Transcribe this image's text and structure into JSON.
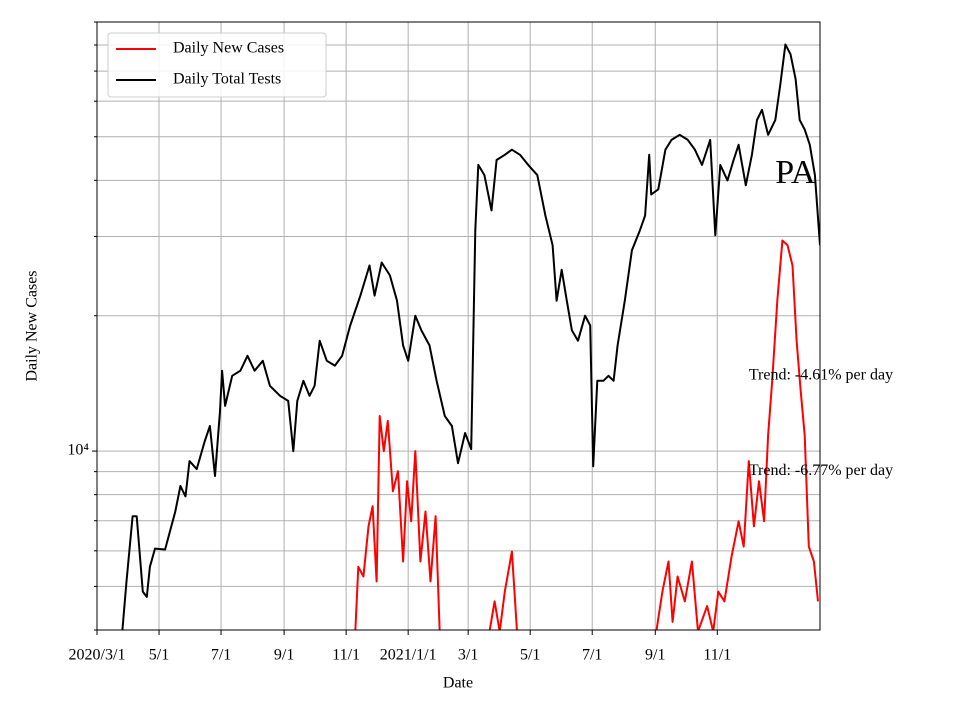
{
  "chart_data": {
    "type": "line",
    "xlabel": "Date",
    "ylabel": "Daily New Cases",
    "log_y": true,
    "grid": true,
    "legend": "upper left",
    "xlim": [
      "2020-03-01",
      "2022-02-10"
    ],
    "xticks": [
      {
        "value": "2020-03-01",
        "label": "2020/3/1"
      },
      {
        "value": "2020-05-01",
        "label": "5/1"
      },
      {
        "value": "2020-07-01",
        "label": "7/1"
      },
      {
        "value": "2020-09-01",
        "label": "9/1"
      },
      {
        "value": "2020-11-01",
        "label": "11/1"
      },
      {
        "value": "2021-01-01",
        "label": "2021/1/1"
      },
      {
        "value": "2021-03-01",
        "label": "3/1"
      },
      {
        "value": "2021-05-01",
        "label": "5/1"
      },
      {
        "value": "2021-07-01",
        "label": "7/1"
      },
      {
        "value": "2021-09-01",
        "label": "9/1"
      },
      {
        "value": "2021-11-01",
        "label": "11/1"
      }
    ],
    "ylim": [
      4000,
      90000
    ],
    "yticks": [
      {
        "value": 10000,
        "label": "10⁴"
      }
    ],
    "yminorticks": [
      4000,
      5000,
      6000,
      7000,
      8000,
      9000,
      20000,
      30000,
      40000,
      50000,
      60000,
      70000,
      80000,
      90000
    ],
    "annotations": [
      {
        "text": "Trend: -4.61% per day",
        "x": "2021-12-02",
        "y": 14700
      },
      {
        "text": "Trend: -6.77% per day",
        "x": "2021-12-02",
        "y": 9020
      },
      {
        "text": "PA",
        "x": "2021-12-28",
        "y": 41100
      }
    ],
    "series": [
      {
        "name": "Daily New Cases",
        "color": "#ff0000",
        "x": [
          "2020-11-10",
          "2020-11-13",
          "2020-11-18",
          "2020-11-23",
          "2020-11-27",
          "2020-12-01",
          "2020-12-04",
          "2020-12-08",
          "2020-12-12",
          "2020-12-17",
          "2020-12-22",
          "2020-12-27",
          "2020-12-31",
          "2021-01-04",
          "2021-01-08",
          "2021-01-13",
          "2021-01-18",
          "2021-01-23",
          "2021-01-28",
          "2021-02-01",
          "2021-02-20",
          "2021-03-22",
          "2021-03-27",
          "2021-04-01",
          "2021-04-06",
          "2021-04-13",
          "2021-04-18",
          "2021-08-01",
          "2021-09-02",
          "2021-09-08",
          "2021-09-14",
          "2021-09-18",
          "2021-09-23",
          "2021-09-30",
          "2021-10-07",
          "2021-10-13",
          "2021-10-22",
          "2021-10-28",
          "2021-11-02",
          "2021-11-08",
          "2021-11-15",
          "2021-11-22",
          "2021-11-27",
          "2021-12-02",
          "2021-12-07",
          "2021-12-12",
          "2021-12-17",
          "2021-12-21",
          "2021-12-25",
          "2021-12-30",
          "2022-01-04",
          "2022-01-09",
          "2022-01-14",
          "2022-01-18",
          "2022-01-22",
          "2022-01-26",
          "2022-01-30",
          "2022-02-04",
          "2022-02-08"
        ],
        "values": [
          3970,
          5530,
          5260,
          6800,
          7540,
          5130,
          11970,
          10000,
          11670,
          8140,
          9020,
          5680,
          8570,
          6980,
          10000,
          5680,
          7340,
          5130,
          7160,
          3970,
          null,
          3970,
          4630,
          3970,
          4870,
          5980,
          3970,
          null,
          3970,
          4870,
          5680,
          4170,
          5260,
          4630,
          5680,
          3970,
          4520,
          3970,
          4870,
          4630,
          5820,
          6980,
          6130,
          9500,
          6800,
          8570,
          6980,
          10830,
          14330,
          21600,
          29400,
          28700,
          25870,
          17600,
          13600,
          10830,
          6130,
          5680,
          4630
        ]
      },
      {
        "name": "Daily Total Tests",
        "color": "#000000",
        "x": [
          "2020-03-26",
          "2020-03-30",
          "2020-04-05",
          "2020-04-09",
          "2020-04-15",
          "2020-04-19",
          "2020-04-22",
          "2020-04-27",
          "2020-05-07",
          "2020-05-17",
          "2020-05-22",
          "2020-05-27",
          "2020-05-31",
          "2020-06-07",
          "2020-06-15",
          "2020-06-20",
          "2020-06-25",
          "2020-06-30",
          "2020-07-02",
          "2020-07-05",
          "2020-07-12",
          "2020-07-20",
          "2020-07-27",
          "2020-08-03",
          "2020-08-11",
          "2020-08-18",
          "2020-08-28",
          "2020-09-05",
          "2020-09-10",
          "2020-09-14",
          "2020-09-20",
          "2020-09-26",
          "2020-10-01",
          "2020-10-06",
          "2020-10-13",
          "2020-10-21",
          "2020-10-28",
          "2020-11-05",
          "2020-11-15",
          "2020-11-24",
          "2020-11-29",
          "2020-12-06",
          "2020-12-14",
          "2020-12-21",
          "2020-12-27",
          "2021-01-01",
          "2021-01-08",
          "2021-01-14",
          "2021-01-22",
          "2021-01-29",
          "2021-02-06",
          "2021-02-13",
          "2021-02-19",
          "2021-02-26",
          "2021-03-04",
          "2021-03-08",
          "2021-03-11",
          "2021-03-17",
          "2021-03-24",
          "2021-03-29",
          "2021-04-06",
          "2021-04-13",
          "2021-04-21",
          "2021-04-29",
          "2021-05-08",
          "2021-05-16",
          "2021-05-23",
          "2021-05-27",
          "2021-06-01",
          "2021-06-06",
          "2021-06-11",
          "2021-06-17",
          "2021-06-24",
          "2021-06-29",
          "2021-07-02",
          "2021-07-06",
          "2021-07-12",
          "2021-07-17",
          "2021-07-22",
          "2021-07-26",
          "2021-08-02",
          "2021-08-09",
          "2021-08-17",
          "2021-08-22",
          "2021-08-26",
          "2021-08-28",
          "2021-09-04",
          "2021-09-11",
          "2021-09-17",
          "2021-09-25",
          "2021-10-03",
          "2021-10-10",
          "2021-10-17",
          "2021-10-25",
          "2021-10-30",
          "2021-11-04",
          "2021-11-11",
          "2021-11-17",
          "2021-11-22",
          "2021-11-29",
          "2021-12-05",
          "2021-12-10",
          "2021-12-15",
          "2021-12-21",
          "2021-12-28",
          "2022-01-02",
          "2022-01-07",
          "2022-01-12",
          "2022-01-17",
          "2022-01-21",
          "2022-01-26",
          "2022-01-31",
          "2022-02-05",
          "2022-02-10"
        ],
        "values": [
          4000,
          5130,
          7160,
          7160,
          4870,
          4740,
          5530,
          6070,
          6040,
          7340,
          8360,
          7930,
          9500,
          9120,
          10530,
          11370,
          8800,
          12280,
          15090,
          12600,
          14700,
          15090,
          16290,
          15090,
          15880,
          13970,
          13270,
          12930,
          10000,
          12930,
          14330,
          13270,
          13970,
          17600,
          15880,
          15490,
          16290,
          19020,
          22170,
          25870,
          22170,
          26260,
          24590,
          21600,
          17180,
          15880,
          20000,
          18550,
          17180,
          14330,
          11970,
          11370,
          9400,
          10970,
          10100,
          31000,
          43300,
          41100,
          34300,
          44400,
          45600,
          46800,
          45600,
          43300,
          41100,
          33400,
          28700,
          21600,
          25300,
          21600,
          18550,
          17600,
          20000,
          19020,
          9250,
          14330,
          14330,
          14700,
          14330,
          17180,
          21600,
          27950,
          31000,
          33400,
          45600,
          37200,
          38200,
          46800,
          49200,
          50500,
          49200,
          46800,
          43300,
          49200,
          30200,
          43300,
          40000,
          44400,
          48000,
          39000,
          45600,
          54500,
          57400,
          50500,
          54500,
          65300,
          80200,
          76300,
          67200,
          54500,
          51900,
          48000,
          41100,
          28700
        ]
      }
    ]
  }
}
